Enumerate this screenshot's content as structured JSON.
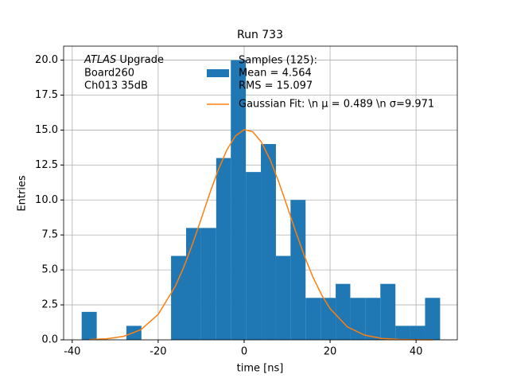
{
  "chart_data": {
    "type": "histogram",
    "title": "Run 733",
    "xlabel": "time [ns]",
    "ylabel": "Entries",
    "annotation": {
      "italic": "ATLAS",
      "lines": [
        " Upgrade",
        " Board260",
        " Ch013 35dB"
      ]
    },
    "xlim": [
      -42,
      49.6
    ],
    "ylim": [
      0,
      21
    ],
    "xticks": [
      -40,
      -20,
      0,
      20,
      40
    ],
    "yticks": [
      {
        "value": 0,
        "label": "0.0"
      },
      {
        "value": 2.5,
        "label": "2.5"
      },
      {
        "value": 5,
        "label": "5.0"
      },
      {
        "value": 7.5,
        "label": "7.5"
      },
      {
        "value": 10,
        "label": "10.0"
      },
      {
        "value": 12.5,
        "label": "12.5"
      },
      {
        "value": 15,
        "label": "15.0"
      },
      {
        "value": 17.5,
        "label": "17.5"
      },
      {
        "value": 20,
        "label": "20.0"
      }
    ],
    "grid": true,
    "legend": "upper right",
    "series": [
      {
        "type": "histogram",
        "name": [
          "Samples (125):",
          " Mean = 4.564",
          " RMS = 15.097"
        ],
        "color": "#1f77b4",
        "bins": [
          -37.8,
          -34.3,
          -30.9,
          -27.4,
          -23.9,
          -20.4,
          -17.0,
          -13.5,
          -10.0,
          -6.5,
          -3.1,
          0.4,
          3.9,
          7.4,
          10.8,
          14.3,
          17.8,
          21.3,
          24.7,
          28.2,
          31.7,
          35.2,
          38.6,
          42.1,
          45.6
        ],
        "values": [
          2,
          0,
          0,
          1,
          0,
          0,
          6,
          8,
          8,
          13,
          20,
          12,
          14,
          6,
          10,
          3,
          3,
          4,
          3,
          3,
          4,
          1,
          1,
          3
        ]
      },
      {
        "type": "line",
        "name": "Gaussian Fit: \\n μ = 0.489 \\n σ=9.971",
        "color": "#ff7f0e",
        "x": [
          -36,
          -32,
          -28,
          -24,
          -20,
          -16,
          -14,
          -12,
          -10,
          -8,
          -6,
          -4,
          -2,
          0,
          2,
          4,
          6,
          8,
          10,
          12,
          14,
          16,
          18,
          20,
          24,
          28,
          32,
          36,
          40,
          44
        ],
        "values": [
          0.02,
          0.07,
          0.25,
          0.73,
          1.82,
          3.83,
          5.23,
          6.86,
          8.64,
          10.47,
          12.17,
          13.59,
          14.59,
          15.03,
          14.88,
          14.15,
          12.92,
          11.34,
          9.56,
          7.74,
          6.01,
          4.49,
          3.23,
          2.23,
          0.93,
          0.34,
          0.1,
          0.03,
          0.01,
          0.0
        ]
      }
    ]
  }
}
